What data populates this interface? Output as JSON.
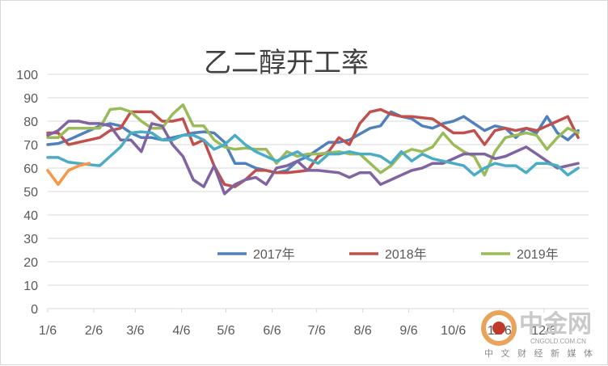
{
  "chart_data": {
    "type": "line",
    "title": "乙二醇开工率",
    "xlabel": "",
    "ylabel": "",
    "ylim": [
      0,
      100
    ],
    "yticks": [
      0,
      10,
      20,
      30,
      40,
      50,
      60,
      70,
      80,
      90,
      100
    ],
    "xlim": [
      0,
      52
    ],
    "xticks": [
      {
        "label": "1/6",
        "x": 0
      },
      {
        "label": "2/6",
        "x": 4.43
      },
      {
        "label": "3/6",
        "x": 8.43
      },
      {
        "label": "4/6",
        "x": 12.86
      },
      {
        "label": "5/6",
        "x": 17.14
      },
      {
        "label": "6/6",
        "x": 21.57
      },
      {
        "label": "7/6",
        "x": 25.86
      },
      {
        "label": "8/6",
        "x": 30.29
      },
      {
        "label": "9/6",
        "x": 34.71
      },
      {
        "label": "10/6",
        "x": 39.0
      },
      {
        "label": "11/6",
        "x": 43.43
      },
      {
        "label": "12/6",
        "x": 47.71
      }
    ],
    "legend_position": "bottom-center",
    "grid": true,
    "series": [
      {
        "name": "2017年",
        "color": "#4f81bd",
        "x": [
          0,
          1,
          2,
          3,
          4,
          5,
          6,
          7,
          8,
          9,
          10,
          11,
          12,
          13,
          14,
          15,
          16,
          17,
          18,
          19,
          20,
          21,
          22,
          23,
          24,
          25,
          26,
          27,
          28,
          29,
          30,
          31,
          32,
          33,
          34,
          35,
          36,
          37,
          38,
          39,
          40,
          41,
          42,
          43,
          44,
          45,
          46,
          47,
          48,
          49,
          50,
          51
        ],
        "values": [
          70,
          70.5,
          72,
          74,
          76,
          78,
          79,
          78,
          75,
          73,
          73,
          72,
          73,
          74,
          75,
          75.5,
          75,
          71,
          62,
          62,
          60,
          59,
          58,
          59,
          63,
          65,
          68,
          71,
          71,
          72,
          74.5,
          77,
          78,
          84,
          82,
          81,
          78,
          77,
          79,
          80,
          82,
          79,
          76,
          78,
          77,
          73,
          77,
          75,
          82,
          75,
          72,
          76
        ]
      },
      {
        "name": "2018年",
        "color": "#c0504d",
        "x": [
          0,
          1,
          2,
          3,
          4,
          5,
          6,
          7,
          8,
          9,
          10,
          11,
          12,
          13,
          14,
          15,
          16,
          17,
          18,
          19,
          20,
          21,
          22,
          23,
          24,
          25,
          26,
          27,
          28,
          29,
          30,
          31,
          32,
          33,
          34,
          35,
          36,
          37,
          38,
          39,
          40,
          41,
          42,
          43,
          44,
          45,
          46,
          47,
          48,
          49,
          50,
          51
        ],
        "values": [
          75,
          75,
          70,
          71,
          72,
          73,
          76,
          77,
          84,
          84,
          84,
          80,
          80,
          81,
          70,
          72,
          61,
          53,
          52,
          55,
          59,
          59,
          58,
          58,
          58.5,
          59,
          65,
          67,
          73,
          70,
          79,
          84,
          85,
          83,
          82,
          82,
          81.5,
          81,
          78,
          75,
          75,
          76,
          70,
          76,
          77,
          76,
          77,
          76,
          78,
          80,
          82,
          73
        ]
      },
      {
        "name": "2019年",
        "color": "#9bbb59",
        "x": [
          0,
          1,
          2,
          3,
          4,
          5,
          6,
          7,
          8,
          9,
          10,
          11,
          12,
          13,
          14,
          15,
          16,
          17,
          18,
          19,
          20,
          21,
          22,
          23,
          24,
          25,
          26,
          27,
          28,
          29,
          30,
          31,
          32,
          33,
          34,
          35,
          36,
          37,
          38,
          39,
          40,
          41,
          42,
          43,
          44,
          45,
          46,
          47,
          48,
          49,
          50,
          51
        ],
        "values": [
          73,
          73,
          77,
          77,
          77,
          77,
          85,
          85.5,
          84,
          80,
          77,
          77,
          83,
          87,
          78,
          78,
          72,
          69,
          68,
          68.5,
          68,
          68,
          62,
          67,
          65,
          66,
          66,
          66.5,
          67,
          66,
          66,
          62,
          58,
          61,
          66,
          68,
          67,
          69,
          75,
          70,
          67,
          65,
          57,
          67,
          73,
          74,
          75,
          74,
          68,
          73,
          77,
          75
        ]
      },
      {
        "name": "",
        "color": "#8064a2",
        "x": [
          0,
          1,
          2,
          3,
          4,
          5,
          6,
          7,
          8,
          9,
          10,
          11,
          12,
          13,
          14,
          15,
          16,
          17,
          18,
          19,
          20,
          21,
          22,
          23,
          24,
          25,
          26,
          27,
          28,
          29,
          30,
          31,
          32,
          33,
          34,
          35,
          36,
          37,
          38,
          39,
          40,
          41,
          42,
          43,
          44,
          45,
          46,
          47,
          48,
          49,
          50,
          51
        ],
        "values": [
          74,
          76,
          80,
          80,
          79,
          79,
          78,
          72,
          72,
          67,
          79,
          78,
          70,
          65,
          55,
          52,
          61,
          49,
          53,
          55,
          56,
          53,
          60,
          61,
          63,
          59,
          59,
          58.5,
          58,
          56,
          58,
          58,
          53,
          55,
          57,
          59,
          60,
          62,
          62,
          64,
          66,
          66,
          66,
          64,
          65,
          67,
          69,
          66,
          63,
          60,
          61,
          62
        ]
      },
      {
        "name": "",
        "color": "#4bacc6",
        "x": [
          0,
          1,
          2,
          3,
          4,
          5,
          6,
          7,
          8,
          9,
          10,
          11,
          12,
          13,
          14,
          15,
          16,
          17,
          18,
          19,
          20,
          21,
          22,
          23,
          24,
          25,
          26,
          27,
          28,
          29,
          30,
          31,
          32,
          33,
          34,
          35,
          36,
          37,
          38,
          39,
          40,
          41,
          42,
          43,
          44,
          45,
          46,
          47,
          48,
          49,
          50,
          51
        ],
        "values": [
          64.5,
          64.5,
          62.5,
          62,
          61.5,
          61,
          65,
          69,
          75,
          75.5,
          75,
          72,
          72,
          74,
          74,
          72,
          68,
          70,
          74,
          70,
          67,
          65,
          63,
          65,
          67,
          64,
          62,
          66,
          66,
          67,
          66,
          66,
          65,
          62,
          67,
          63,
          66,
          64,
          63,
          62,
          61,
          57,
          60,
          62,
          61,
          61,
          58,
          62,
          62,
          61,
          57,
          60
        ]
      },
      {
        "name": "",
        "color": "#f79646",
        "x": [
          0,
          1,
          2,
          3,
          4
        ],
        "values": [
          59,
          53,
          59,
          61,
          62
        ]
      }
    ]
  },
  "watermark": {
    "name": "中金网",
    "url": "CNGOLD.COM.CN",
    "subtitle": "中 文 财 经 新 媒 体",
    "colors": {
      "outer": "#e9a35c",
      "inner": "#c0392b"
    }
  }
}
